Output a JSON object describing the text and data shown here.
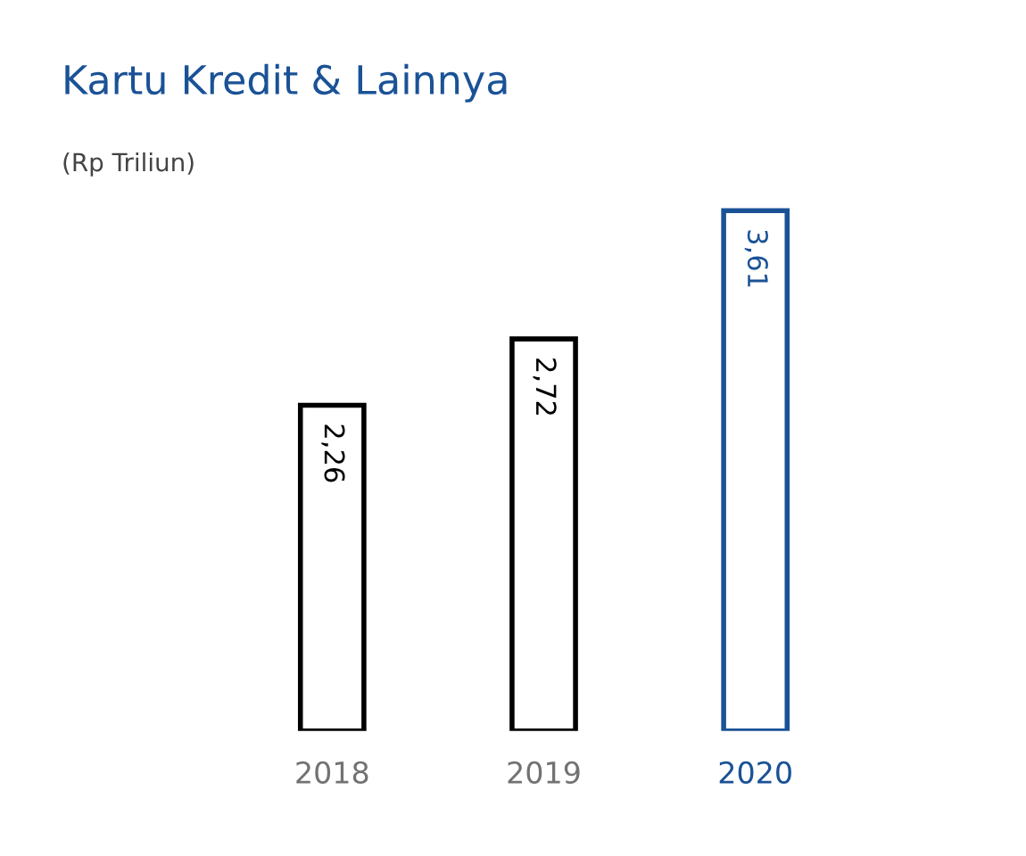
{
  "chart_data": {
    "type": "bar",
    "title": "Kartu Kredit & Lainnya",
    "subtitle": "(Rp Triliun)",
    "categories": [
      "2018",
      "2019",
      "2020"
    ],
    "values": [
      2.26,
      2.72,
      3.61
    ],
    "value_labels": [
      "2,26",
      "2,72",
      "3,61"
    ],
    "colors": [
      "#000000",
      "#000000",
      "#1a5296"
    ],
    "tick_labels": "x",
    "grid": false,
    "legend": false
  }
}
